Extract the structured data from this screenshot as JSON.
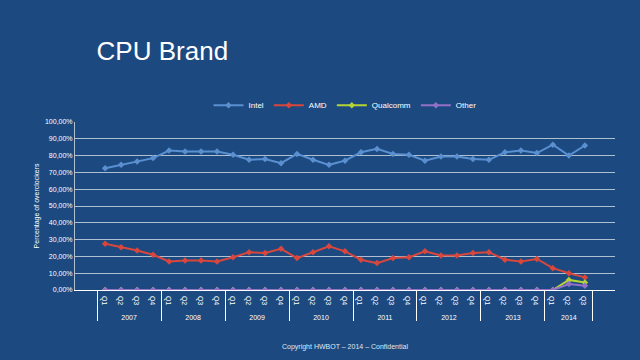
{
  "chart_data": {
    "type": "line",
    "title": "CPU Brand",
    "y_label": "Percentage of overclockers",
    "annotations": [
      "Copyright HWBOT – 2014 – Confidential"
    ],
    "categories": [
      [
        "2007",
        "Q1"
      ],
      [
        "2007",
        "Q2"
      ],
      [
        "2007",
        "Q3"
      ],
      [
        "2007",
        "Q4"
      ],
      [
        "2008",
        "Q1"
      ],
      [
        "2008",
        "Q2"
      ],
      [
        "2008",
        "Q3"
      ],
      [
        "2008",
        "Q4"
      ],
      [
        "2009",
        "Q1"
      ],
      [
        "2009",
        "Q2"
      ],
      [
        "2009",
        "Q3"
      ],
      [
        "2009",
        "Q4"
      ],
      [
        "2010",
        "Q1"
      ],
      [
        "2010",
        "Q2"
      ],
      [
        "2010",
        "Q3"
      ],
      [
        "2010",
        "Q4"
      ],
      [
        "2011",
        "Q1"
      ],
      [
        "2011",
        "Q2"
      ],
      [
        "2011",
        "Q3"
      ],
      [
        "2011",
        "Q4"
      ],
      [
        "2012",
        "Q1"
      ],
      [
        "2012",
        "Q2"
      ],
      [
        "2012",
        "Q3"
      ],
      [
        "2012",
        "Q4"
      ],
      [
        "2013",
        "Q1"
      ],
      [
        "2013",
        "Q2"
      ],
      [
        "2013",
        "Q3"
      ],
      [
        "2013",
        "Q4"
      ],
      [
        "2014",
        "Q1"
      ],
      [
        "2014",
        "Q2"
      ],
      [
        "2014",
        "Q3"
      ]
    ],
    "series": [
      {
        "name": "Intel",
        "color": "#5a8fd0",
        "marker": "diamond",
        "values": [
          72.5,
          74.5,
          76.5,
          78.5,
          83,
          82.5,
          82.5,
          82.5,
          80.5,
          77.5,
          78,
          75.5,
          81,
          77.5,
          74.5,
          77,
          82,
          84,
          81,
          80.5,
          77,
          79.5,
          79.5,
          78,
          77.5,
          82,
          83,
          81.5,
          86.5,
          80,
          86
        ]
      },
      {
        "name": "AMD",
        "color": "#d9463c",
        "marker": "diamond",
        "values": [
          27.5,
          25.5,
          23.5,
          21,
          17,
          17.5,
          17.5,
          17,
          19.5,
          22.5,
          22,
          24.5,
          19,
          22.5,
          26,
          23,
          18,
          16,
          19,
          19.5,
          23,
          20.5,
          20.5,
          22,
          22.5,
          18,
          17,
          18.5,
          13,
          10,
          7.5
        ]
      },
      {
        "name": "Qualcomm",
        "color": "#b5d334",
        "marker": "diamond",
        "values": [
          0,
          0,
          0,
          0,
          0,
          0,
          0,
          0,
          0,
          0,
          0,
          0,
          0,
          0,
          0,
          0,
          0,
          0,
          0,
          0,
          0,
          0,
          0,
          0,
          0,
          0,
          0,
          0,
          0,
          6,
          4.5
        ]
      },
      {
        "name": "Other",
        "color": "#9370c8",
        "marker": "diamond",
        "values": [
          0,
          0,
          0,
          0,
          0,
          0,
          0,
          0,
          0,
          0,
          0,
          0,
          0,
          0,
          0,
          0,
          0,
          0,
          0,
          0,
          0,
          0,
          0,
          0,
          0,
          0,
          0,
          0,
          0,
          3.5,
          2.5
        ]
      }
    ],
    "ylim": [
      0,
      100
    ],
    "yticks": [
      {
        "value": 0,
        "label": "0,00%"
      },
      {
        "value": 10,
        "label": "10,00%"
      },
      {
        "value": 20,
        "label": "20,00%"
      },
      {
        "value": 30,
        "label": "30,00%"
      },
      {
        "value": 40,
        "label": "40,00%"
      },
      {
        "value": 50,
        "label": "50,00%"
      },
      {
        "value": 60,
        "label": "60,00%"
      },
      {
        "value": 70,
        "label": "70,00%"
      },
      {
        "value": 80,
        "label": "80,00%"
      },
      {
        "value": 90,
        "label": "90,00%"
      },
      {
        "value": 100,
        "label": "100,00%"
      }
    ],
    "grid": true,
    "legend": "top",
    "line_style": "solid"
  }
}
